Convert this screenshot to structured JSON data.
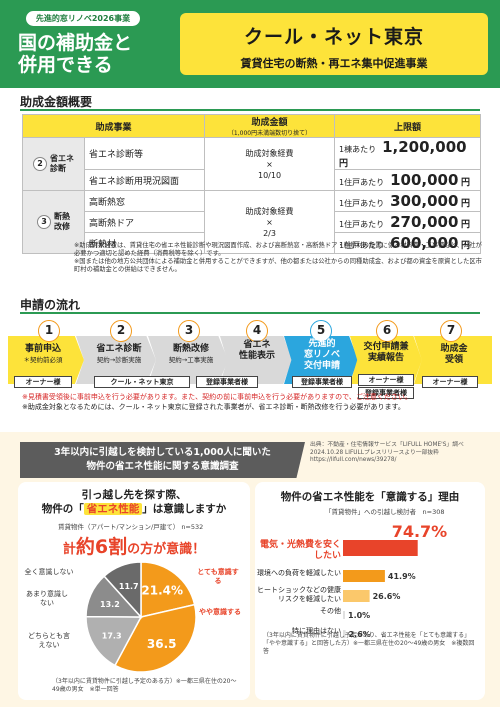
{
  "header": {
    "badge": "先進的窓リノベ2026事業",
    "title_line1": "国の補助金と",
    "title_line2": "併用できる",
    "box_title": "クール・ネット東京",
    "box_subtitle": "賃貸住宅の断熱・再エネ集中促進事業"
  },
  "subsidy": {
    "heading": "助成金額概要",
    "col_project": "助成事業",
    "col_amount": "助成金額",
    "col_amount_note": "（1,000円未満端数切り捨て）",
    "col_limit": "上限額",
    "groups": [
      {
        "num": "2",
        "label_line1": "省エネ",
        "label_line2": "診断",
        "calc_line1": "助成対象経費",
        "calc_line2": "×",
        "calc_line3": "10/10",
        "rows": [
          {
            "item": "省エネ診断等",
            "per": "1棟あたり",
            "amount": "1,200,000",
            "unit": "円"
          },
          {
            "item": "省エネ診断用現況図面",
            "per": "1住戸あたり",
            "amount": "100,000",
            "unit": "円"
          }
        ]
      },
      {
        "num": "3",
        "label_line1": "断熱",
        "label_line2": "改修",
        "calc_line1": "助成対象経費",
        "calc_line2": "×",
        "calc_line3": "2/3",
        "rows": [
          {
            "item": "高断熱窓",
            "per": "1住戸あたり",
            "amount": "300,000",
            "unit": "円"
          },
          {
            "item": "高断熱ドア",
            "per": "1住戸あたり",
            "amount": "270,000",
            "unit": "円"
          },
          {
            "item": "断熱材",
            "per": "1住戸あたり",
            "amount": "600,000",
            "unit": "円"
          }
        ]
      }
    ],
    "note1": "※助成対象経費は、賃貸住宅の省エネ性能診断や現況図面作成、および高断熱窓・高断熱ドア・断熱材の設置に係る材料費・工事費など、公社が必要かつ適切と認めた経費（消費税等を除く）です。",
    "note2": "※国または他の地方公共団体による補助金と併用することができますが、他の都または公社からの同種助成金、および都の資金を原資とした区市町村の補助金との併給はできません。"
  },
  "flow": {
    "heading": "申請の流れ",
    "steps": [
      {
        "num": "1",
        "title": "事前申込",
        "sub": "＊契約前必須"
      },
      {
        "num": "2",
        "title": "省エネ診断",
        "sub": "契約→診断実施"
      },
      {
        "num": "3",
        "title": "断熱改修",
        "sub": "契約→工事実施"
      },
      {
        "num": "4",
        "title_line1": "省エネ",
        "title_line2": "性能表示"
      },
      {
        "num": "5",
        "title_line1": "先進的",
        "title_line2": "窓リノベ",
        "title_line3": "交付申請"
      },
      {
        "num": "6",
        "title_line1": "交付申請兼",
        "title_line2": "実績報告"
      },
      {
        "num": "7",
        "title_line1": "助成金",
        "title_line2": "受領"
      }
    ],
    "actors": {
      "owner1": "オーナー様",
      "coolnet": "クール・ネット東京",
      "registered1": "登録事業者様",
      "registered2": "登録事業者様",
      "owner2": "オーナー様",
      "registered3": "登録事業者様",
      "owner3": "オーナー様"
    },
    "note_red": "※見積書受領後に事前申込を行う必要があります。また、契約の前に事前申込を行う必要がありますので、ご注意ください。",
    "note2": "※助成金対象となるためには、クール・ネット東京に登録された事業者が、省エネ診断・断熱改修を行う必要があります。"
  },
  "survey": {
    "banner_line1": "3年以内に引越しを検討している1,000人に聞いた",
    "banner_line2": "物件の省エネ性能に関する意識調査",
    "source": "出典：不動産・住宅情報サービス「LIFULL HOME'S」調べ 2024.10.28 LIFULLプレスリリースより一部抜粋 https://lifull.com/news/39278/",
    "left": {
      "q_line1": "引っ越し先を探す際、",
      "q_pre": "物件の「",
      "q_hl": "省エネ性能",
      "q_post": "」は意識しますか",
      "sub": "賃貸物件（アパート/マンション/戸建て） n=532",
      "claim_pre": "計",
      "claim_big": "約6割",
      "claim_post": "の方が意識！",
      "foot": "（3年以内に賃貸物件に引越し予定のある方）※一都三県在住の20〜49歳の男女　※単一回答"
    },
    "right": {
      "q_line1": "物件の省エネ性能を「意識する」理由",
      "sub": "「賃貸物件」への引越し検討者　n=308",
      "foot": "（3年以内に賃貸物件に引越し予定があり、省エネ性能を「とても意識する」「やや意識する」と回答した方）※一都三県在住の20〜49歳の男女　※複数回答"
    }
  },
  "chart_data": [
    {
      "type": "pie",
      "title": "",
      "labels": [
        "とても意識する",
        "やや意識する",
        "どちらとも言えない",
        "あまり意識しない",
        "全く意識しない"
      ],
      "values": [
        21.4,
        36.5,
        17.3,
        13.2,
        11.7
      ],
      "value_labels": [
        "21.4%",
        "36.5",
        "17.3",
        "13.2",
        "11.7"
      ],
      "colors": [
        "#f39a1b",
        "#f39a1b",
        "#b0b0b0",
        "#8c8c8c",
        "#6a6a6a"
      ]
    },
    {
      "type": "bar",
      "orientation": "horizontal",
      "categories": [
        "電気・光熱費を安くしたい",
        "環境への負荷を軽減したい",
        "ヒートショックなどの健康リスクを軽減したい",
        "その他",
        "特に理由はない"
      ],
      "values": [
        74.7,
        41.9,
        26.6,
        1.0,
        2.6
      ],
      "value_labels": [
        "74.7%",
        "41.9%",
        "26.6%",
        "1.0%",
        "2.6%"
      ],
      "colors": [
        "#e8442a",
        "#f39a1b",
        "#fbc86b",
        "#e0e0e0",
        "#e0e0e0"
      ],
      "xlim": [
        0,
        100
      ]
    }
  ]
}
